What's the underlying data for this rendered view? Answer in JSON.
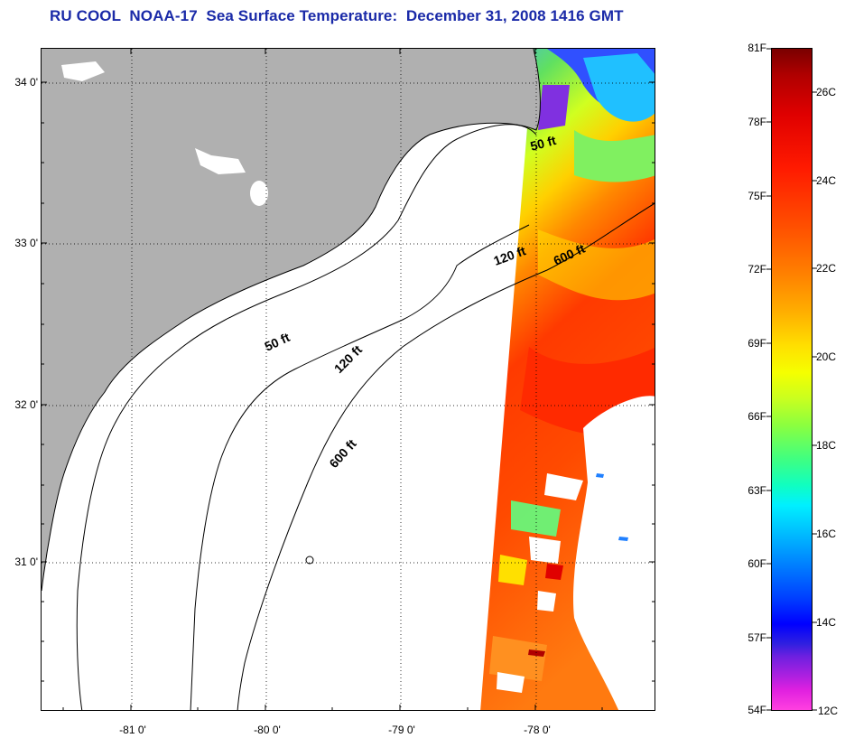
{
  "title": "RU COOL  NOAA-17  Sea Surface Temperature:  December 31, 2008 1416 GMT",
  "map": {
    "latitude_labels": [
      {
        "value": 34,
        "label": "34 0'"
      },
      {
        "value": 33,
        "label": "33 0'"
      },
      {
        "value": 32,
        "label": "32 0'"
      },
      {
        "value": 31,
        "label": "31 0'"
      }
    ],
    "longitude_labels": [
      {
        "value": -81,
        "label": "-81 0'"
      },
      {
        "value": -80,
        "label": "-80 0'"
      },
      {
        "value": -79,
        "label": "-79 0'"
      },
      {
        "value": -78,
        "label": "-78 0'"
      }
    ],
    "depth_contour_labels": [
      {
        "text": "50 ft",
        "contour": "50 ft",
        "side": "north"
      },
      {
        "text": "120 ft",
        "contour": "120 ft",
        "side": "north"
      },
      {
        "text": "600 ft",
        "contour": "600 ft",
        "side": "north"
      },
      {
        "text": "50 ft",
        "contour": "50 ft",
        "side": "south"
      },
      {
        "text": "120 ft",
        "contour": "120 ft",
        "side": "south"
      },
      {
        "text": "600 ft",
        "contour": "600 ft",
        "side": "south"
      }
    ],
    "land_color": "#b0b0b0",
    "cloud_color": "#ffffff"
  },
  "colorbar": {
    "fahrenheit_labels": [
      "81F",
      "78F",
      "75F",
      "72F",
      "69F",
      "66F",
      "63F",
      "60F",
      "57F",
      "54F"
    ],
    "celsius_labels": [
      "26C",
      "24C",
      "22C",
      "20C",
      "18C",
      "16C",
      "14C",
      "12C"
    ],
    "range_f": [
      54,
      81
    ],
    "range_c": [
      12,
      27.2
    ]
  }
}
